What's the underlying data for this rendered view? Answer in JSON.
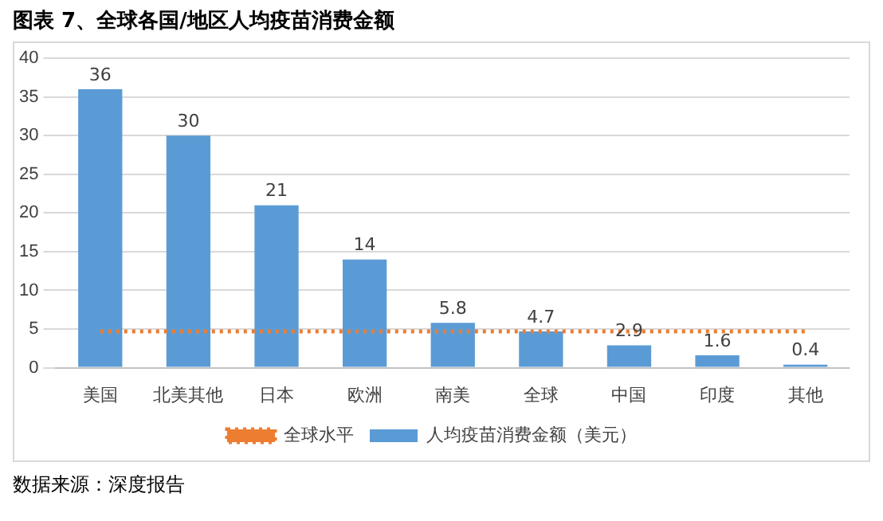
{
  "chart_data": {
    "type": "bar",
    "title": "图表 7、全球各国/地区人均疫苗消费金额",
    "categories": [
      "美国",
      "北美其他",
      "日本",
      "欧洲",
      "南美",
      "全球",
      "中国",
      "印度",
      "其他"
    ],
    "series": [
      {
        "name": "人均疫苗消费金额（美元）",
        "color": "#5b9bd5",
        "values": [
          36,
          30,
          21,
          14,
          5.8,
          4.7,
          2.9,
          1.6,
          0.4
        ]
      }
    ],
    "ylim": [
      0,
      40
    ],
    "yticks": [
      0,
      5,
      10,
      15,
      20,
      25,
      30,
      35,
      40
    ],
    "grid": "y",
    "legend": "bottom",
    "data_labels": true,
    "ref_lines": [
      {
        "axis": "y",
        "value": 4.7,
        "label": "全球水平",
        "color": "#ed7d31",
        "line_style": "dotted"
      }
    ],
    "annotations": [
      "数据来源：深度报告"
    ]
  }
}
